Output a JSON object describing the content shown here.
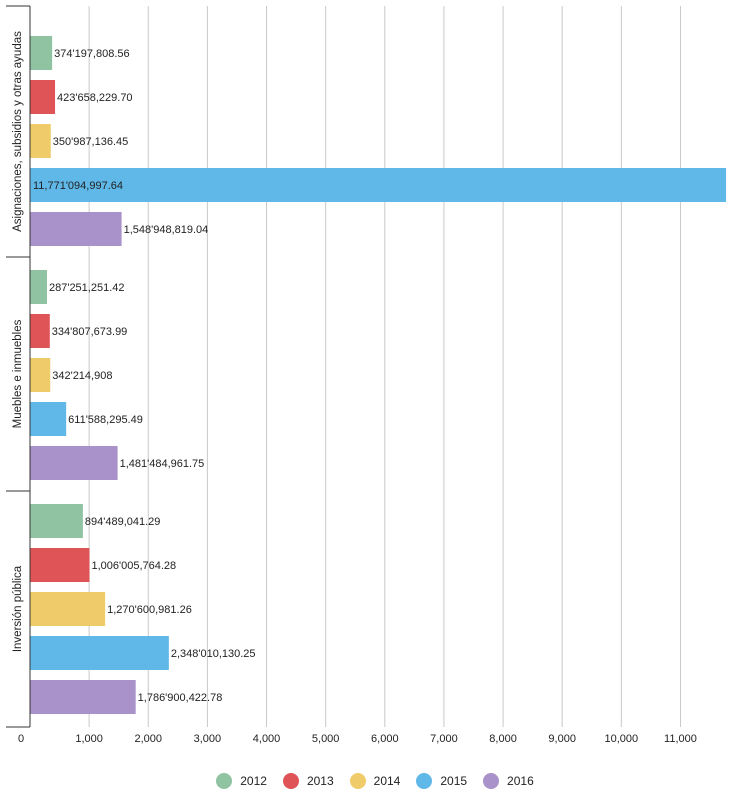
{
  "chart_data": {
    "type": "bar",
    "orientation": "horizontal",
    "title": "",
    "xlabel": "",
    "ylabel": "",
    "xlim": [
      0,
      11770
    ],
    "x_ticks": [
      "0",
      "1,000",
      "2,000",
      "3,000",
      "4,000",
      "5,000",
      "6,000",
      "7,000",
      "8,000",
      "9,000",
      "10,000",
      "11,000"
    ],
    "grid": true,
    "legend": "bottom",
    "categories": [
      "Asignaciones, subsidios y otras ayudas",
      "Muebles e inmuebles",
      "Inversión pública"
    ],
    "series": [
      {
        "name": "2012",
        "color": "#8fc3a2",
        "values": [
          374.19780856,
          287.25125142,
          894.48904129
        ],
        "labels": [
          "374'197,808.56",
          "287'251,251.42",
          "894'489,041.29"
        ]
      },
      {
        "name": "2013",
        "color": "#df5456",
        "values": [
          423.6582297,
          334.80767399,
          1006.00576428
        ],
        "labels": [
          "423'658,229.70",
          "334'807,673.99",
          "1,006'005,764.28"
        ]
      },
      {
        "name": "2014",
        "color": "#efcb6a",
        "values": [
          350.98713645,
          342.214908,
          1270.60098126
        ],
        "labels": [
          "350'987,136.45",
          "342'214,908",
          "1,270'600,981.26"
        ]
      },
      {
        "name": "2015",
        "color": "#5fb8e8",
        "values": [
          11771.09499764,
          611.58829549,
          2348.01013025
        ],
        "labels": [
          "11,771'094,997.64",
          "611'588,295.49",
          "2,348'010,130.25"
        ]
      },
      {
        "name": "2016",
        "color": "#a892c9",
        "values": [
          1548.94881904,
          1481.48496175,
          1786.90042278
        ],
        "labels": [
          "1,548'948,819.04",
          "1,481'484,961.75",
          "1,786'900,422.78"
        ]
      }
    ]
  }
}
